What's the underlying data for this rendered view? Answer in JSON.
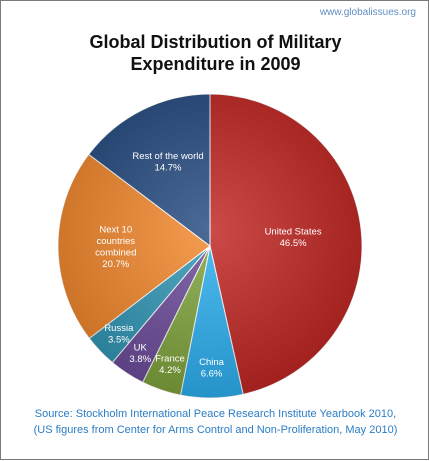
{
  "site": "www.globalissues.org",
  "title_lines": [
    "Global Distribution of Military",
    "Expenditure in 2009"
  ],
  "source_lines": [
    "Source: Stockholm International Peace Research Institute Yearbook 2010,",
    "(US figures from Center for Arms Control and Non-Proliferation, May 2010)"
  ],
  "chart_data": {
    "type": "pie",
    "title": "Global Distribution of Military Expenditure in 2009",
    "slices": [
      {
        "label": "United States",
        "value": 46.5,
        "value_label": "46.5%",
        "color": "#c0231f"
      },
      {
        "label": "China",
        "value": 6.6,
        "value_label": "6.6%",
        "color": "#29aef0"
      },
      {
        "label": "France",
        "value": 4.2,
        "value_label": "4.2%",
        "color": "#7ea33a"
      },
      {
        "label": "UK",
        "value": 3.8,
        "value_label": "3.8%",
        "color": "#6a4a9a"
      },
      {
        "label": "Russia",
        "value": 3.5,
        "value_label": "3.5%",
        "color": "#2e95b5"
      },
      {
        "label": "Next 10 countries combined",
        "value": 20.7,
        "value_label": "20.7%",
        "color": "#f2862a"
      },
      {
        "label": "Rest of the world",
        "value": 14.7,
        "value_label": "14.7%",
        "color": "#23497f"
      }
    ]
  }
}
